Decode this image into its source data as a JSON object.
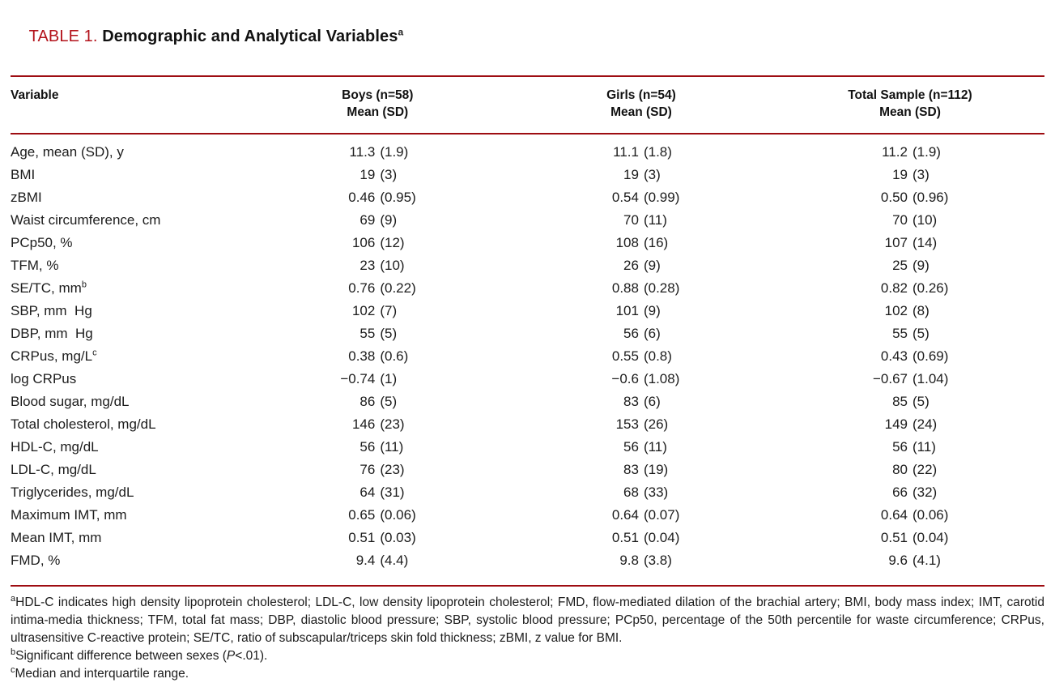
{
  "title": {
    "tag": "TABLE 1. ",
    "text": "Demographic and Analytical Variables",
    "sup": "a"
  },
  "columns": {
    "variable": "Variable",
    "groups": [
      {
        "line1": "Boys (n=58)",
        "line2": "Mean (SD)"
      },
      {
        "line1": "Girls (n=54)",
        "line2": "Mean (SD)"
      },
      {
        "line1": "Total Sample (n=112)",
        "line2": "Mean (SD)"
      }
    ]
  },
  "rows": [
    {
      "label": "Age, mean (SD), y",
      "sup": "",
      "boys": "11.3 (1.9)",
      "girls": "11.1 (1.8)",
      "total": "11.2 (1.9)"
    },
    {
      "label": "BMI",
      "sup": "",
      "boys": "19 (3)",
      "girls": "19 (3)",
      "total": "19 (3)"
    },
    {
      "label": "zBMI",
      "sup": "",
      "boys": "0.46 (0.95)",
      "girls": "0.54 (0.99)",
      "total": "0.50 (0.96)"
    },
    {
      "label": "Waist circumference, cm",
      "sup": "",
      "boys": "69 (9)",
      "girls": "70 (11)",
      "total": "70 (10)"
    },
    {
      "label": "PCp50, %",
      "sup": "",
      "boys": "106 (12)",
      "girls": "108 (16)",
      "total": "107 (14)"
    },
    {
      "label": "TFM, %",
      "sup": "",
      "boys": "23 (10)",
      "girls": "26 (9)",
      "total": "25 (9)"
    },
    {
      "label": "SE/TC, mm",
      "sup": "b",
      "boys": "0.76 (0.22)",
      "girls": "0.88 (0.28)",
      "total": "0.82 (0.26)"
    },
    {
      "label": "SBP, mm  Hg",
      "sup": "",
      "boys": "102 (7)",
      "girls": "101 (9)",
      "total": "102 (8)"
    },
    {
      "label": "DBP, mm  Hg",
      "sup": "",
      "boys": "55 (5)",
      "girls": "56 (6)",
      "total": "55 (5)"
    },
    {
      "label": "CRPus, mg/L",
      "sup": "c",
      "boys": "0.38 (0.6)",
      "girls": "0.55 (0.8)",
      "total": "0.43 (0.69)"
    },
    {
      "label": "log CRPus",
      "sup": "",
      "boys": "−0.74 (1)",
      "girls": "−0.6 (1.08)",
      "total": "−0.67 (1.04)"
    },
    {
      "label": "Blood sugar, mg/dL",
      "sup": "",
      "boys": "86 (5)",
      "girls": "83 (6)",
      "total": "85 (5)"
    },
    {
      "label": "Total cholesterol, mg/dL",
      "sup": "",
      "boys": "146 (23)",
      "girls": "153 (26)",
      "total": "149 (24)"
    },
    {
      "label": "HDL-C, mg/dL",
      "sup": "",
      "boys": "56 (11)",
      "girls": "56 (11)",
      "total": "56 (11)"
    },
    {
      "label": "LDL-C, mg/dL",
      "sup": "",
      "boys": "76 (23)",
      "girls": "83 (19)",
      "total": "80 (22)"
    },
    {
      "label": "Triglycerides, mg/dL",
      "sup": "",
      "boys": "64 (31)",
      "girls": "68 (33)",
      "total": "66 (32)"
    },
    {
      "label": "Maximum IMT, mm",
      "sup": "",
      "boys": "0.65 (0.06)",
      "girls": "0.64 (0.07)",
      "total": "0.64 (0.06)"
    },
    {
      "label": "Mean IMT, mm",
      "sup": "",
      "boys": "0.51 (0.03)",
      "girls": "0.51 (0.04)",
      "total": "0.51 (0.04)"
    },
    {
      "label": "FMD, %",
      "sup": "",
      "boys": "9.4 (4.4)",
      "girls": "9.8 (3.8)",
      "total": "9.6 (4.1)"
    }
  ],
  "footnotes": [
    {
      "sup": "a",
      "pre": "HDL-C indicates high density lipoprotein cholesterol; LDL-C, low density lipoprotein cholesterol; FMD, flow-mediated dilation of the brachial artery; BMI, body mass index; IMT, carotid intima-media thickness; TFM, total fat mass; DBP, diastolic blood pressure; SBP, systolic blood pressure; PCp50, percentage of the 50th percentile for waste circumference; CRPus, ultrasensitive C-reactive protein; SE/TC, ratio of subscapular/triceps skin fold thickness; zBMI, z value for BMI.",
      "italic": "",
      "post": ""
    },
    {
      "sup": "b",
      "pre": "Significant difference between sexes (",
      "italic": "P",
      "post": "<.01)."
    },
    {
      "sup": "c",
      "pre": "Median and interquartile range.",
      "italic": "",
      "post": ""
    }
  ],
  "colors": {
    "accent_red": "#b3121a",
    "rule_red": "#9e0d12",
    "text": "#1c1c1c"
  }
}
